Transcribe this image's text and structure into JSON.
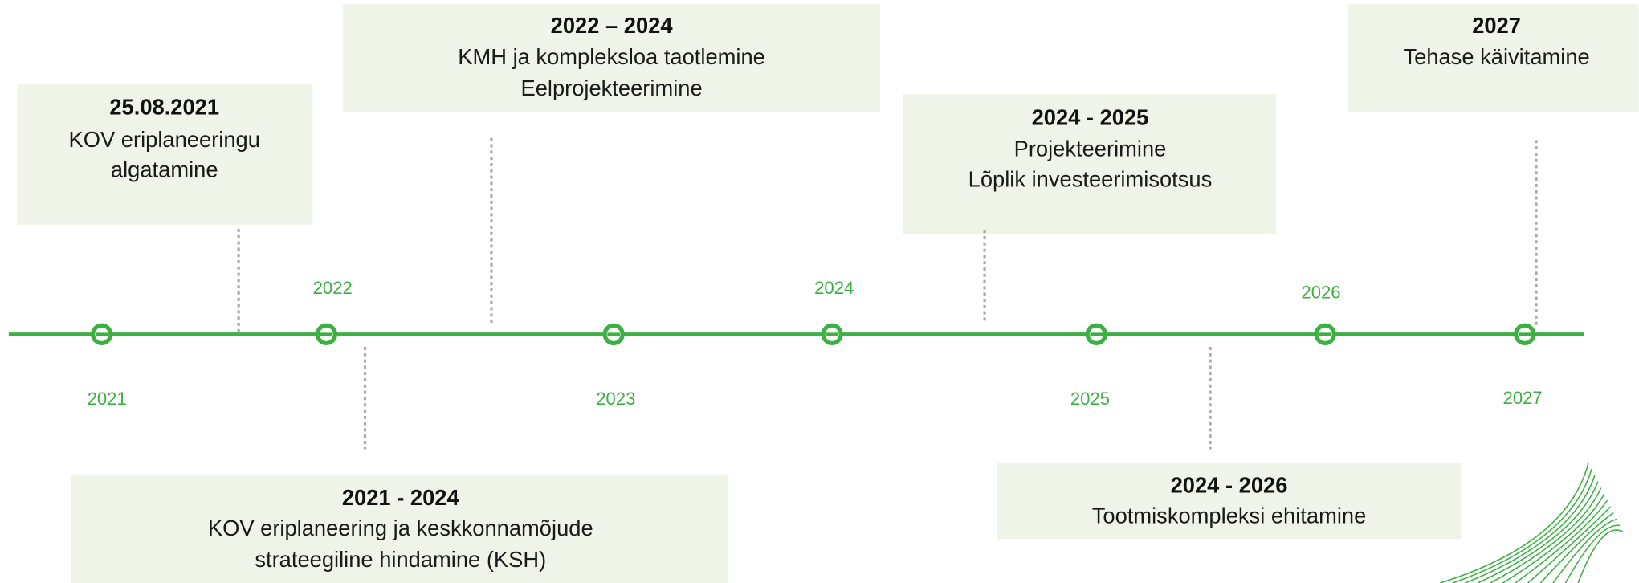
{
  "timeline": {
    "years": [
      "2021",
      "2022",
      "2023",
      "2024",
      "2025",
      "2026",
      "2027"
    ],
    "events": [
      {
        "title": "25.08.2021",
        "lines": [
          "KOV eriplaneeringu",
          "algatamine"
        ]
      },
      {
        "title": "2022 – 2024",
        "lines": [
          "KMH ja kompleksloa taotlemine",
          "Eelprojekteerimine"
        ]
      },
      {
        "title": "2024 - 2025",
        "lines": [
          "Projekteerimine",
          "Lõplik investeerimisotsus"
        ]
      },
      {
        "title": "2027",
        "lines": [
          "Tehase käivitamine"
        ]
      },
      {
        "title": "2021 - 2024",
        "lines": [
          "KOV eriplaneering ja keskkonnamõjude",
          "strateegiline hindamine (KSH)"
        ]
      },
      {
        "title": "2024 - 2026",
        "lines": [
          "Tootmiskompleksi ehitamine"
        ]
      }
    ]
  }
}
